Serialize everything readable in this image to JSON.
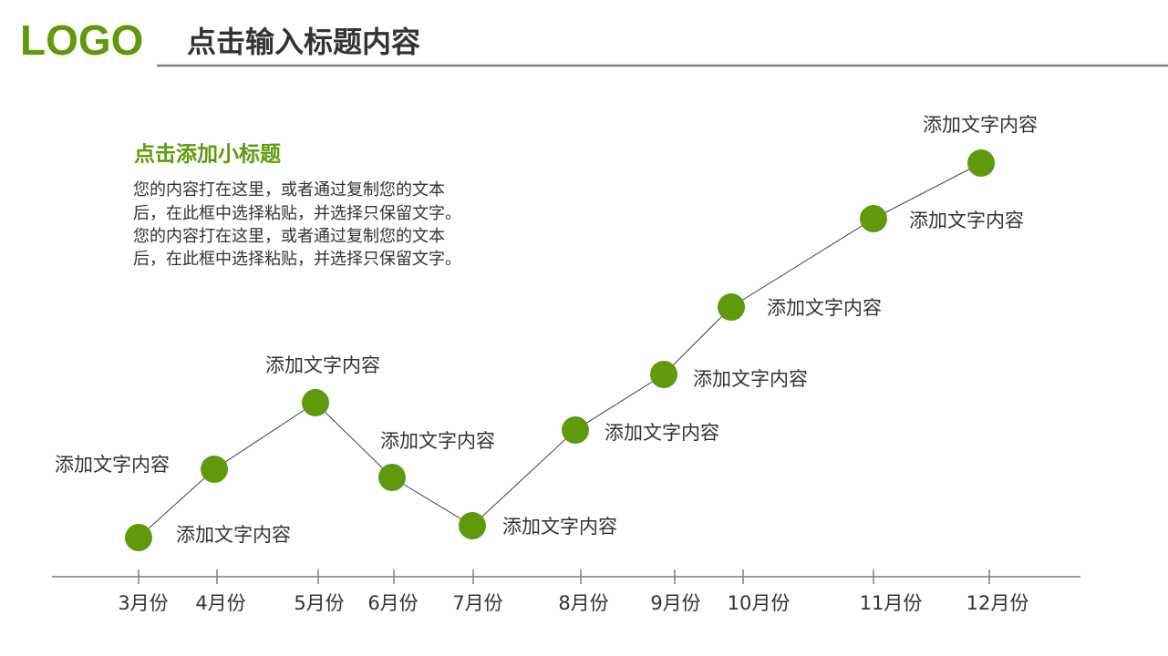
{
  "header": {
    "logo": "LOGO",
    "title": "点击输入标题内容"
  },
  "intro": {
    "subtitle": "点击添加小标题",
    "lines": [
      "您的内容打在这里，或者通过复制您的文本",
      "后，在此框中选择粘贴，并选择只保留文字。",
      "您的内容打在这里，或者通过复制您的文本",
      "后，在此框中选择粘贴，并选择只保留文字。"
    ]
  },
  "timeline": {
    "points": [
      {
        "month": "3月份",
        "label": "添加文字内容"
      },
      {
        "month": "4月份",
        "label": "添加文字内容"
      },
      {
        "month": "5月份",
        "label": "添加文字内容"
      },
      {
        "month": "6月份",
        "label": "添加文字内容"
      },
      {
        "month": "7月份",
        "label": "添加文字内容"
      },
      {
        "month": "8月份",
        "label": "添加文字内容"
      },
      {
        "month": "9月份",
        "label": "添加文字内容"
      },
      {
        "month": "10月份",
        "label": "添加文字内容"
      },
      {
        "month": "11月份",
        "label": "添加文字内容"
      },
      {
        "month": "12月份",
        "label": "添加文字内容"
      }
    ]
  }
}
